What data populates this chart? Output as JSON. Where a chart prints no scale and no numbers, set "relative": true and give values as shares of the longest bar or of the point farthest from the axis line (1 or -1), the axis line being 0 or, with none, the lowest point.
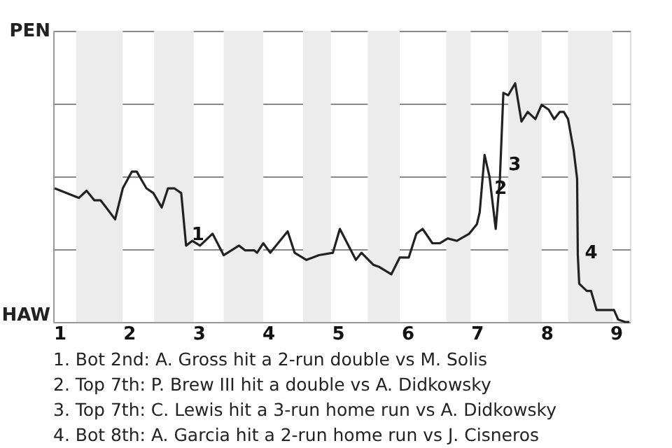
{
  "chart_data": {
    "type": "line",
    "relative": true,
    "x": [
      0.93,
      1.28,
      1.39,
      1.5,
      1.59,
      1.67,
      1.8,
      1.91,
      2.04,
      2.11,
      2.25,
      2.35,
      2.47,
      2.56,
      2.65,
      2.75,
      2.82,
      2.91,
      3.02,
      3.2,
      3.36,
      3.58,
      3.67,
      3.8,
      3.84,
      3.93,
      4.03,
      4.28,
      4.38,
      4.55,
      4.73,
      4.93,
      5.03,
      5.26,
      5.34,
      5.51,
      5.6,
      5.77,
      5.89,
      6.02,
      6.13,
      6.22,
      6.36,
      6.47,
      6.58,
      6.71,
      6.89,
      7.0,
      7.04,
      7.11,
      7.18,
      7.27,
      7.33,
      7.38,
      7.45,
      7.55,
      7.64,
      7.73,
      7.84,
      7.93,
      8.03,
      8.11,
      8.19,
      8.25,
      8.31,
      8.39,
      8.44,
      8.45,
      8.47,
      8.58,
      8.64,
      8.72,
      8.97,
      9.03,
      9.13,
      9.19
    ],
    "series": [
      {
        "color": "#222222",
        "values": [
          0.56,
          0.52,
          0.55,
          0.51,
          0.51,
          0.48,
          0.43,
          0.56,
          0.63,
          0.63,
          0.56,
          0.54,
          0.48,
          0.56,
          0.56,
          0.54,
          0.32,
          0.34,
          0.32,
          0.37,
          0.28,
          0.32,
          0.3,
          0.3,
          0.29,
          0.33,
          0.29,
          0.38,
          0.29,
          0.26,
          0.28,
          0.29,
          0.39,
          0.26,
          0.29,
          0.24,
          0.23,
          0.2,
          0.27,
          0.27,
          0.37,
          0.39,
          0.33,
          0.33,
          0.35,
          0.34,
          0.37,
          0.41,
          0.46,
          0.7,
          0.61,
          0.39,
          0.6,
          0.96,
          0.95,
          1,
          0.84,
          0.88,
          0.85,
          0.91,
          0.89,
          0.85,
          0.88,
          0.88,
          0.85,
          0.72,
          0.6,
          0.28,
          0.16,
          0.13,
          0.13,
          0.05,
          0.05,
          0.01,
          0,
          0
        ]
      }
    ],
    "xlim": [
      0.91,
      9.2
    ],
    "xticks": [
      1,
      2,
      3,
      4,
      5,
      6,
      7,
      8,
      9
    ],
    "grid": "y",
    "marker": "none",
    "line_style": "solid",
    "bands": [
      {
        "axis": "x",
        "from": 1.24,
        "to": 1.91,
        "color": "#ececec"
      },
      {
        "axis": "x",
        "from": 2.36,
        "to": 2.93,
        "color": "#ececec"
      },
      {
        "axis": "x",
        "from": 3.36,
        "to": 3.93,
        "color": "#ececec"
      },
      {
        "axis": "x",
        "from": 4.5,
        "to": 4.9,
        "color": "#ececec"
      },
      {
        "axis": "x",
        "from": 5.43,
        "to": 5.89,
        "color": "#ececec"
      },
      {
        "axis": "x",
        "from": 6.56,
        "to": 6.91,
        "color": "#ececec"
      },
      {
        "axis": "x",
        "from": 7.45,
        "to": 7.93,
        "color": "#ececec"
      },
      {
        "axis": "x",
        "from": 8.31,
        "to": 8.95,
        "color": "#ececec"
      }
    ],
    "annotations": [
      "PEN",
      "HAW",
      {
        "text": "1",
        "x": 2.82,
        "y": 0.32
      },
      {
        "text": "2",
        "x": 7.11,
        "y": 0.7
      },
      {
        "text": "3",
        "x": 7.33,
        "y": 0.6
      },
      {
        "text": "4",
        "x": 8.45,
        "y": 0.28
      },
      "1. Bot 2nd: A. Gross hit a 2-run double vs M. Solis",
      "2. Top 7th: P. Brew III hit a double vs A. Didkowsky",
      "3. Top 7th: C. Lewis hit a 3-run home run vs A. Didkowsky",
      "4. Bot 8th: A. Garcia hit a 2-run home run vs J. Cisneros"
    ]
  }
}
